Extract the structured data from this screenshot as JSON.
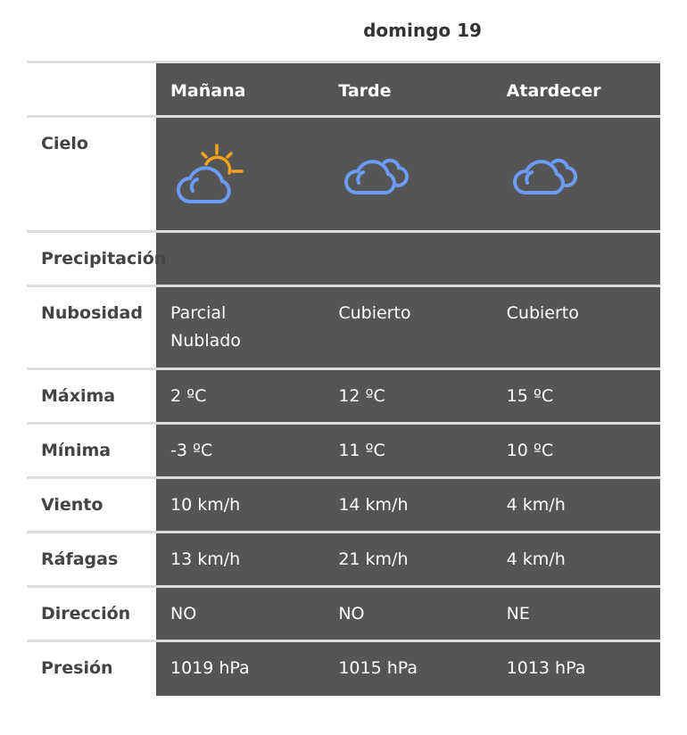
{
  "day": "domingo 19",
  "columns": [
    "Mañana",
    "Tarde",
    "Atardecer"
  ],
  "colors": {
    "cell_bg": "#555555",
    "cloud": "#6b9bf5",
    "sun": "#f7a21b"
  },
  "rows": [
    {
      "label": "Cielo",
      "icons": [
        "partly-cloudy-icon",
        "cloudy-icon",
        "cloudy-icon"
      ]
    },
    {
      "label": "Precipitación",
      "values": [
        "",
        "",
        ""
      ]
    },
    {
      "label": "Nubosidad",
      "values": [
        "Parcial Nublado",
        "Cubierto",
        "Cubierto"
      ]
    },
    {
      "label": "Máxima",
      "values": [
        "2 ºC",
        "12 ºC",
        "15 ºC"
      ]
    },
    {
      "label": "Mínima",
      "values": [
        "-3 ºC",
        "11 ºC",
        "10 ºC"
      ]
    },
    {
      "label": "Viento",
      "values": [
        "10 km/h",
        "14 km/h",
        "4 km/h"
      ]
    },
    {
      "label": "Ráfagas",
      "values": [
        "13 km/h",
        "21 km/h",
        "4 km/h"
      ]
    },
    {
      "label": "Dirección",
      "values": [
        "NO",
        "NO",
        "NE"
      ]
    },
    {
      "label": "Presión",
      "values": [
        "1019 hPa",
        "1015 hPa",
        "1013 hPa"
      ]
    }
  ]
}
